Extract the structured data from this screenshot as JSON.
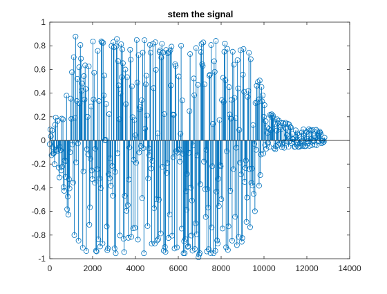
{
  "chart_data": {
    "type": "stem",
    "title": "stem the signal",
    "xlabel": "",
    "ylabel": "",
    "xlim": [
      0,
      14000
    ],
    "ylim": [
      -1,
      1
    ],
    "x_ticks": [
      0,
      2000,
      4000,
      6000,
      8000,
      10000,
      12000,
      14000
    ],
    "x_tick_labels": [
      "0",
      "2000",
      "4000",
      "6000",
      "8000",
      "10000",
      "12000",
      "14000"
    ],
    "y_ticks": [
      -1,
      -0.8,
      -0.6,
      -0.4,
      -0.2,
      0,
      0.2,
      0.4,
      0.6,
      0.8,
      1
    ],
    "y_tick_labels": [
      "-1",
      "-0.8",
      "-0.6",
      "-0.4",
      "-0.2",
      "0",
      "0.2",
      "0.4",
      "0.6",
      "0.8",
      "1"
    ],
    "grid": false,
    "legend": "none",
    "series": [
      {
        "n_samples": 12850,
        "marker": "circle",
        "color": "#0072BD",
        "envelope": {
          "x": [
            0,
            300,
            600,
            800,
            1000,
            1200,
            1400,
            1600,
            2000,
            2400,
            2800,
            3200,
            4000,
            5000,
            6000,
            7000,
            8000,
            9000,
            9500,
            9800,
            10000,
            10200,
            10500,
            11000,
            11500,
            12000,
            12500,
            12850
          ],
          "upper": [
            0.08,
            0.22,
            0.28,
            0.45,
            0.55,
            0.93,
            0.85,
            0.6,
            0.9,
            0.85,
            0.95,
            0.86,
            0.85,
            0.85,
            0.87,
            0.86,
            0.84,
            0.82,
            0.78,
            0.55,
            0.35,
            0.25,
            0.2,
            0.16,
            0.1,
            0.1,
            0.09,
            0.05
          ],
          "lower": [
            -0.08,
            -0.25,
            -0.45,
            -0.6,
            -0.7,
            -0.92,
            -0.9,
            -0.95,
            -0.93,
            -0.98,
            -0.99,
            -0.96,
            -0.95,
            -0.98,
            -0.97,
            -1.0,
            -0.96,
            -0.92,
            -0.82,
            -0.35,
            -0.18,
            -0.12,
            -0.08,
            -0.06,
            -0.06,
            -0.05,
            -0.04,
            -0.02
          ]
        }
      }
    ]
  }
}
